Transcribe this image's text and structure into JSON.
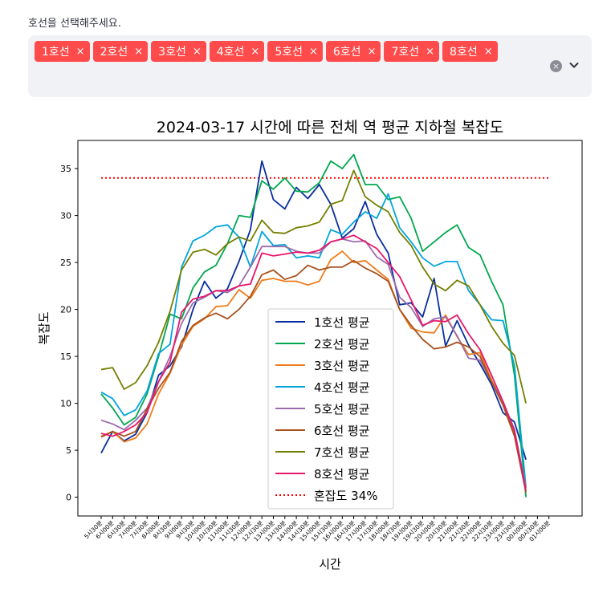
{
  "selector": {
    "prompt": "호선을 선택해주세요.",
    "chips": [
      "1호선",
      "2호선",
      "3호선",
      "4호선",
      "5호선",
      "6호선",
      "7호선",
      "8호선"
    ],
    "remove_glyph": "×",
    "clear_glyph": "×",
    "accent_color": "#ff4b4b"
  },
  "chart_data": {
    "type": "line",
    "title": "2024-03-17 시간에 따른 전체 역 평균 지하철 복잡도",
    "xlabel": "시간",
    "ylabel": "복잡도",
    "ylim": [
      -2,
      38
    ],
    "yticks": [
      0,
      5,
      10,
      15,
      20,
      25,
      30,
      35
    ],
    "categories": [
      "5시30분",
      "6시00분",
      "6시30분",
      "7시00분",
      "7시30분",
      "8시00분",
      "8시30분",
      "9시00분",
      "9시30분",
      "10시00분",
      "10시30분",
      "11시00분",
      "11시30분",
      "12시00분",
      "12시30분",
      "13시00분",
      "13시30분",
      "14시00분",
      "14시30분",
      "15시00분",
      "15시30분",
      "16시00분",
      "16시30분",
      "17시00분",
      "17시30분",
      "18시00분",
      "18시30분",
      "19시00분",
      "19시30분",
      "20시00분",
      "20시30분",
      "21시00분",
      "21시30분",
      "22시00분",
      "22시30분",
      "23시00분",
      "23시30분",
      "00시00분",
      "00시30분",
      "01시00분"
    ],
    "legend_position": "center-bottom",
    "grid": false,
    "series": [
      {
        "name": "1호선 평균",
        "color": "#0a2f9e",
        "values": [
          4.7,
          7.0,
          6.0,
          6.7,
          9.0,
          13.0,
          14.0,
          16.0,
          20.0,
          23.0,
          21.2,
          22.2,
          25.1,
          28.5,
          35.8,
          31.7,
          30.7,
          33.0,
          31.8,
          33.3,
          31.2,
          27.6,
          28.6,
          31.5,
          28.0,
          26.0,
          20.5,
          20.7,
          19.2,
          23.3,
          16.1,
          18.8,
          16.2,
          14.2,
          12.0,
          9.0,
          8.0,
          4.0,
          null,
          null
        ]
      },
      {
        "name": "2호선 평균",
        "color": "#00a84d",
        "values": [
          11.0,
          9.5,
          7.7,
          8.5,
          11.0,
          15.0,
          19.5,
          19.0,
          22.3,
          24.0,
          24.7,
          27.0,
          30.0,
          29.8,
          33.7,
          32.8,
          34.0,
          32.6,
          32.5,
          33.5,
          35.8,
          35.0,
          36.5,
          33.3,
          33.3,
          31.7,
          32.0,
          29.7,
          26.2,
          27.2,
          28.2,
          29.0,
          26.6,
          25.8,
          23.0,
          20.5,
          13.0,
          0.0,
          null,
          null
        ]
      },
      {
        "name": "3호선 평균",
        "color": "#ef7c1c",
        "values": [
          6.5,
          7.0,
          5.9,
          6.3,
          7.8,
          11.0,
          13.2,
          16.2,
          18.2,
          19.0,
          20.3,
          20.4,
          22.1,
          21.2,
          23.1,
          23.3,
          23.0,
          23.0,
          22.6,
          23.0,
          25.3,
          26.2,
          25.0,
          25.2,
          24.2,
          23.2,
          20.0,
          18.0,
          17.6,
          17.5,
          19.4,
          17.1,
          15.2,
          15.4,
          12.5,
          10.0,
          6.8,
          1.0,
          null,
          null
        ]
      },
      {
        "name": "4호선 평균",
        "color": "#00a5de",
        "values": [
          11.2,
          10.5,
          8.7,
          9.3,
          11.3,
          15.3,
          16.3,
          24.5,
          27.3,
          27.9,
          28.8,
          29.0,
          27.7,
          24.5,
          28.3,
          26.8,
          26.9,
          25.5,
          25.7,
          25.5,
          28.5,
          28.0,
          29.3,
          30.4,
          29.7,
          32.3,
          28.7,
          27.2,
          25.5,
          24.6,
          25.1,
          25.1,
          22.0,
          20.5,
          18.9,
          18.8,
          14.0,
          1.0,
          null,
          null
        ]
      },
      {
        "name": "5호선 평균",
        "color": "#996cac",
        "values": [
          8.2,
          7.8,
          7.2,
          8.2,
          9.5,
          12.3,
          15.0,
          18.5,
          20.7,
          21.3,
          22.0,
          21.8,
          22.5,
          24.5,
          26.7,
          26.7,
          26.7,
          26.2,
          26.0,
          26.0,
          27.2,
          27.5,
          27.2,
          27.3,
          25.6,
          24.8,
          21.3,
          20.2,
          18.2,
          19.0,
          19.2,
          17.2,
          14.8,
          14.6,
          12.3,
          10.2,
          7.2,
          1.0,
          null,
          null
        ]
      },
      {
        "name": "6호선 평균",
        "color": "#a8521e",
        "values": [
          6.4,
          7.0,
          6.5,
          7.0,
          9.4,
          11.6,
          13.3,
          16.6,
          18.3,
          19.1,
          19.6,
          19.0,
          20.0,
          21.4,
          23.7,
          24.2,
          23.2,
          23.6,
          24.7,
          24.2,
          24.5,
          24.5,
          25.2,
          24.4,
          23.8,
          23.0,
          20.0,
          18.3,
          16.8,
          15.8,
          16.0,
          16.5,
          16.0,
          15.0,
          12.3,
          9.8,
          6.5,
          0.5,
          null,
          null
        ]
      },
      {
        "name": "7호선 평균",
        "color": "#747f00",
        "values": [
          13.6,
          13.8,
          11.5,
          12.2,
          14.0,
          16.5,
          19.8,
          24.2,
          26.1,
          26.4,
          25.8,
          27.0,
          27.7,
          27.3,
          29.5,
          28.2,
          28.1,
          28.7,
          28.9,
          29.3,
          31.2,
          31.6,
          34.8,
          32.0,
          31.1,
          30.4,
          28.2,
          26.8,
          24.5,
          22.7,
          22.0,
          23.1,
          22.5,
          20.5,
          18.2,
          16.4,
          15.1,
          10.0,
          null,
          null
        ]
      },
      {
        "name": "8호선 평균",
        "color": "#e6186c",
        "values": [
          6.8,
          6.5,
          7.0,
          7.7,
          9.0,
          12.3,
          14.4,
          19.7,
          21.1,
          21.4,
          22.0,
          22.0,
          22.5,
          22.7,
          26.0,
          25.7,
          25.9,
          26.1,
          26.0,
          26.3,
          27.2,
          27.5,
          27.9,
          27.2,
          26.5,
          25.0,
          23.5,
          21.0,
          18.3,
          18.8,
          18.7,
          19.4,
          17.4,
          15.7,
          13.0,
          10.2,
          7.0,
          0.7,
          null,
          null
        ]
      }
    ],
    "reference_line": {
      "name": "혼잡도 34%",
      "value": 34,
      "color": "#ff0000",
      "style": "dotted"
    }
  }
}
